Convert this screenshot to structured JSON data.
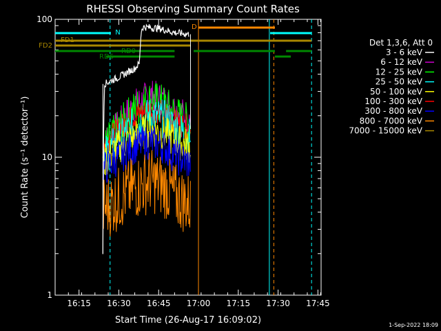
{
  "chart_data": {
    "type": "line",
    "title": "RHESSI Observing Summary Count Rates",
    "xlabel": "Start Time (26-Aug-17 16:09:02)",
    "ylabel": "Count Rate (s⁻¹ detector⁻¹)",
    "yscale": "log",
    "ylim": [
      1,
      100
    ],
    "xlim_minutes": [
      16.1,
      17.77
    ],
    "x_ticks": [
      "16:15",
      "16:30",
      "16:45",
      "17:00",
      "17:15",
      "17:30",
      "17:45"
    ],
    "y_ticks": [
      "1",
      "10",
      "100"
    ],
    "legend_header": "Det 1,3,6, Att 0",
    "legend_position": "right",
    "grid": false,
    "series": [
      {
        "name": "3 - 6 keV",
        "color": "#000000",
        "points": [
          [
            16.39,
            0
          ],
          [
            16.4,
            2.0
          ],
          [
            16.41,
            34
          ],
          [
            16.5,
            38
          ],
          [
            16.6,
            44
          ],
          [
            16.63,
            48
          ],
          [
            16.64,
            82
          ],
          [
            16.65,
            88
          ],
          [
            16.75,
            86
          ],
          [
            16.85,
            80
          ],
          [
            16.94,
            78
          ],
          [
            16.96,
            0
          ]
        ]
      },
      {
        "name": "6 - 12 keV",
        "color": "#cc00cc",
        "points": [
          [
            16.4,
            12
          ],
          [
            16.5,
            17
          ],
          [
            16.6,
            24
          ],
          [
            16.7,
            28
          ],
          [
            16.78,
            26
          ],
          [
            16.86,
            22
          ],
          [
            16.95,
            19
          ]
        ]
      },
      {
        "name": "12 - 25 keV",
        "color": "#00ff00",
        "points": [
          [
            16.4,
            11
          ],
          [
            16.5,
            16
          ],
          [
            16.6,
            22
          ],
          [
            16.7,
            26
          ],
          [
            16.78,
            24
          ],
          [
            16.86,
            20
          ],
          [
            16.95,
            17
          ]
        ]
      },
      {
        "name": "25 - 50 keV",
        "color": "#00ffff",
        "points": [
          [
            16.4,
            10
          ],
          [
            16.5,
            13
          ],
          [
            16.6,
            17
          ],
          [
            16.7,
            20
          ],
          [
            16.78,
            19
          ],
          [
            16.86,
            16
          ],
          [
            16.95,
            14
          ]
        ]
      },
      {
        "name": "50 - 100 keV",
        "color": "#ffff00",
        "points": [
          [
            16.4,
            9
          ],
          [
            16.5,
            12
          ],
          [
            16.6,
            14
          ],
          [
            16.7,
            16
          ],
          [
            16.78,
            15
          ],
          [
            16.86,
            13
          ],
          [
            16.95,
            12
          ]
        ]
      },
      {
        "name": "100 - 300 keV",
        "color": "#ff0000",
        "points": [
          [
            16.4,
            12
          ],
          [
            16.5,
            16
          ],
          [
            16.6,
            20
          ],
          [
            16.7,
            22
          ],
          [
            16.78,
            21
          ],
          [
            16.86,
            18
          ],
          [
            16.95,
            16
          ]
        ]
      },
      {
        "name": "300 - 800 keV",
        "color": "#0000ff",
        "points": [
          [
            16.4,
            8
          ],
          [
            16.5,
            10
          ],
          [
            16.6,
            12
          ],
          [
            16.7,
            13
          ],
          [
            16.78,
            12
          ],
          [
            16.86,
            10
          ],
          [
            16.95,
            9
          ]
        ]
      },
      {
        "name": "800 - 7000 keV",
        "color": "#ff8800",
        "points": [
          [
            16.4,
            4.2
          ],
          [
            16.5,
            5.0
          ],
          [
            16.6,
            6.0
          ],
          [
            16.7,
            6.8
          ],
          [
            16.78,
            6.2
          ],
          [
            16.86,
            5.2
          ],
          [
            16.95,
            4.5
          ]
        ]
      },
      {
        "name": "7000 - 15000 keV",
        "color": "#aa8800",
        "points": []
      }
    ],
    "flags": [
      {
        "label": "FD1",
        "color": "#aa8800"
      },
      {
        "label": "FD2",
        "color": "#aa8800"
      },
      {
        "label": "RD0",
        "color": "#008800"
      },
      {
        "label": "RD6",
        "color": "#008800"
      },
      {
        "label": "N",
        "color": "#00ffff"
      },
      {
        "label": "D",
        "color": "#ff8800"
      }
    ]
  },
  "footer": {
    "date": "1-Sep-2022 18:09"
  }
}
